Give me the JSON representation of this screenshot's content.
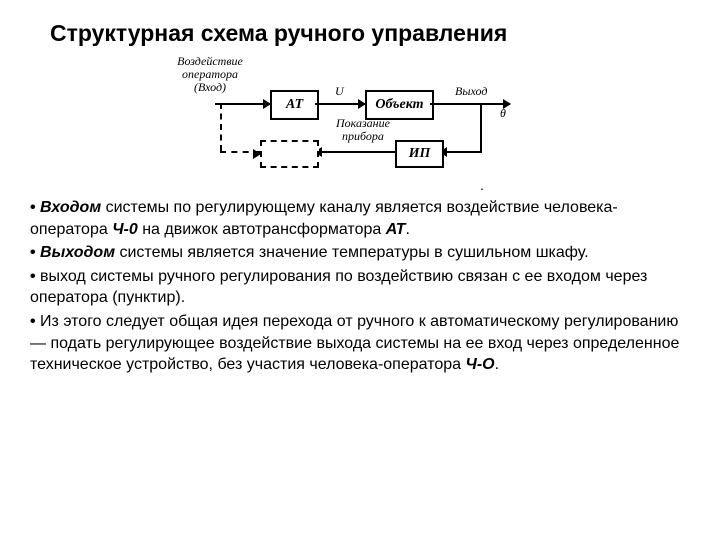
{
  "title": "Структурная схема ручного управления",
  "diagram": {
    "labels": {
      "input": "Воздействие\nоператора\n(Вход)",
      "u": "U",
      "output": "Выход",
      "theta": "θ",
      "feedback": "Показание\nприбора"
    },
    "boxes": {
      "at": "АТ",
      "object": "Объект",
      "ip": "ИП",
      "dashed": ""
    },
    "colors": {
      "line": "#000000",
      "bg": "#ffffff"
    }
  },
  "paragraphs": {
    "p1a": "Входом",
    "p1b": " системы по регулирующему каналу является воздействие человека-оператора ",
    "p1c": "Ч-0",
    "p1d": " на движок автотрансформатора ",
    "p1e": "АТ",
    "p1f": ".",
    "p2a": "Выходом",
    "p2b": " системы является значение  температуры в сушильном шкафу.",
    "p3": "выход системы ручного регулирования по воздействию связан с ее входом через оператора (пунктир).",
    "p4a": "Из этого следует общая идея перехода от ручного к автоматическому регулированию — подать регулирующее воздействие выхода системы на ее вход через определенное техническое устройство, без участия человека-оператора ",
    "p4b": "Ч-О",
    "p4c": "."
  }
}
